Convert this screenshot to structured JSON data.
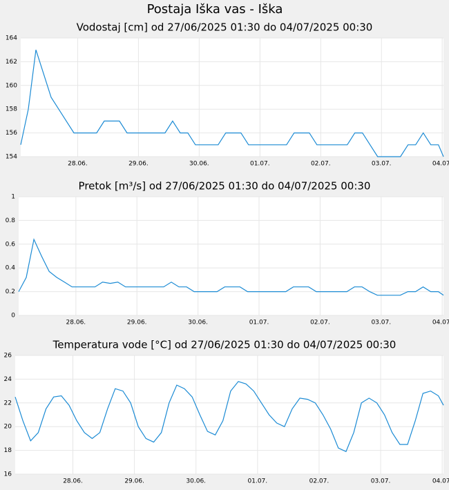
{
  "title": "Postaja Iška vas - Iška",
  "chart_data": [
    {
      "type": "line",
      "title": "Vodostaj [cm] od 27/06/2025 01:30 do 04/07/2025 00:30",
      "x": [
        "27/06/2025 01:30",
        "27/06/2025 04:30",
        "27/06/2025 07:30",
        "27/06/2025 10:30",
        "27/06/2025 13:30",
        "27/06/2025 16:30",
        "27/06/2025 19:30",
        "27/06/2025 22:30",
        "28/06/2025 01:30",
        "28/06/2025 04:30",
        "28/06/2025 07:30",
        "28/06/2025 10:30",
        "28/06/2025 13:30",
        "28/06/2025 16:30",
        "28/06/2025 19:30",
        "28/06/2025 22:30",
        "29/06/2025 01:30",
        "29/06/2025 04:30",
        "29/06/2025 07:30",
        "29/06/2025 10:30",
        "29/06/2025 13:30",
        "29/06/2025 16:30",
        "29/06/2025 19:30",
        "29/06/2025 22:30",
        "30/06/2025 01:30",
        "30/06/2025 04:30",
        "30/06/2025 07:30",
        "30/06/2025 10:30",
        "30/06/2025 13:30",
        "30/06/2025 16:30",
        "30/06/2025 19:30",
        "30/06/2025 22:30",
        "01/07/2025 01:30",
        "01/07/2025 04:30",
        "01/07/2025 07:30",
        "01/07/2025 10:30",
        "01/07/2025 13:30",
        "01/07/2025 16:30",
        "01/07/2025 19:30",
        "01/07/2025 22:30",
        "02/07/2025 01:30",
        "02/07/2025 04:30",
        "02/07/2025 07:30",
        "02/07/2025 10:30",
        "02/07/2025 13:30",
        "02/07/2025 16:30",
        "02/07/2025 19:30",
        "02/07/2025 22:30",
        "03/07/2025 01:30",
        "03/07/2025 04:30",
        "03/07/2025 07:30",
        "03/07/2025 10:30",
        "03/07/2025 13:30",
        "03/07/2025 16:30",
        "03/07/2025 19:30",
        "03/07/2025 22:30",
        "04/07/2025 00:30"
      ],
      "values": [
        155,
        158,
        163,
        161,
        159,
        158,
        157,
        156,
        156,
        156,
        156,
        157,
        157,
        157,
        156,
        156,
        156,
        156,
        156,
        156,
        157,
        156,
        156,
        155,
        155,
        155,
        155,
        156,
        156,
        156,
        155,
        155,
        155,
        155,
        155,
        155,
        156,
        156,
        156,
        155,
        155,
        155,
        155,
        155,
        156,
        156,
        155,
        154,
        154,
        154,
        154,
        155,
        155,
        156,
        155,
        155,
        154
      ],
      "color": "#1a8ad4",
      "xlim": [
        "27/06/2025 01:30",
        "04/07/2025 00:30"
      ],
      "xticks": [
        {
          "value": "28/06/2025 00:00",
          "label": "28.06."
        },
        {
          "value": "29/06/2025 00:00",
          "label": "29.06."
        },
        {
          "value": "30/06/2025 00:00",
          "label": "30.06."
        },
        {
          "value": "01/07/2025 00:00",
          "label": "01.07."
        },
        {
          "value": "02/07/2025 00:00",
          "label": "02.07."
        },
        {
          "value": "03/07/2025 00:00",
          "label": "03.07."
        },
        {
          "value": "04/07/2025 00:00",
          "label": "04.07."
        }
      ],
      "ylim": [
        154,
        164
      ],
      "yticks": [
        154,
        156,
        158,
        160,
        162,
        164
      ],
      "grid": true
    },
    {
      "type": "line",
      "title": "Pretok [m³/s] od 27/06/2025 01:30 do 04/07/2025 00:30",
      "x": [
        "27/06/2025 01:30",
        "27/06/2025 04:30",
        "27/06/2025 07:30",
        "27/06/2025 10:30",
        "27/06/2025 13:30",
        "27/06/2025 16:30",
        "27/06/2025 19:30",
        "27/06/2025 22:30",
        "28/06/2025 01:30",
        "28/06/2025 04:30",
        "28/06/2025 07:30",
        "28/06/2025 10:30",
        "28/06/2025 13:30",
        "28/06/2025 16:30",
        "28/06/2025 19:30",
        "28/06/2025 22:30",
        "29/06/2025 01:30",
        "29/06/2025 04:30",
        "29/06/2025 07:30",
        "29/06/2025 10:30",
        "29/06/2025 13:30",
        "29/06/2025 16:30",
        "29/06/2025 19:30",
        "29/06/2025 22:30",
        "30/06/2025 01:30",
        "30/06/2025 04:30",
        "30/06/2025 07:30",
        "30/06/2025 10:30",
        "30/06/2025 13:30",
        "30/06/2025 16:30",
        "30/06/2025 19:30",
        "30/06/2025 22:30",
        "01/07/2025 01:30",
        "01/07/2025 04:30",
        "01/07/2025 07:30",
        "01/07/2025 10:30",
        "01/07/2025 13:30",
        "01/07/2025 16:30",
        "01/07/2025 19:30",
        "01/07/2025 22:30",
        "02/07/2025 01:30",
        "02/07/2025 04:30",
        "02/07/2025 07:30",
        "02/07/2025 10:30",
        "02/07/2025 13:30",
        "02/07/2025 16:30",
        "02/07/2025 19:30",
        "02/07/2025 22:30",
        "03/07/2025 01:30",
        "03/07/2025 04:30",
        "03/07/2025 07:30",
        "03/07/2025 10:30",
        "03/07/2025 13:30",
        "03/07/2025 16:30",
        "03/07/2025 19:30",
        "03/07/2025 22:30",
        "04/07/2025 00:30"
      ],
      "values": [
        0.2,
        0.32,
        0.64,
        0.5,
        0.37,
        0.32,
        0.28,
        0.24,
        0.24,
        0.24,
        0.24,
        0.28,
        0.27,
        0.28,
        0.24,
        0.24,
        0.24,
        0.24,
        0.24,
        0.24,
        0.28,
        0.24,
        0.24,
        0.2,
        0.2,
        0.2,
        0.2,
        0.24,
        0.24,
        0.24,
        0.2,
        0.2,
        0.2,
        0.2,
        0.2,
        0.2,
        0.24,
        0.24,
        0.24,
        0.2,
        0.2,
        0.2,
        0.2,
        0.2,
        0.24,
        0.24,
        0.2,
        0.17,
        0.17,
        0.17,
        0.17,
        0.2,
        0.2,
        0.24,
        0.2,
        0.2,
        0.17
      ],
      "color": "#1a8ad4",
      "xlim": [
        "27/06/2025 01:30",
        "04/07/2025 00:30"
      ],
      "xticks": [
        {
          "value": "28/06/2025 00:00",
          "label": "28.06."
        },
        {
          "value": "29/06/2025 00:00",
          "label": "29.06."
        },
        {
          "value": "30/06/2025 00:00",
          "label": "30.06."
        },
        {
          "value": "01/07/2025 00:00",
          "label": "01.07."
        },
        {
          "value": "02/07/2025 00:00",
          "label": "02.07."
        },
        {
          "value": "03/07/2025 00:00",
          "label": "03.07."
        },
        {
          "value": "04/07/2025 00:00",
          "label": "04.07."
        }
      ],
      "ylim": [
        0,
        1
      ],
      "yticks": [
        0,
        0.2,
        0.4,
        0.6,
        0.8,
        1
      ],
      "grid": true
    },
    {
      "type": "line",
      "title": "Temperatura vode [°C] od 27/06/2025 01:30 do 04/07/2025 00:30",
      "x": [
        "27/06/2025 01:30",
        "27/06/2025 04:30",
        "27/06/2025 07:30",
        "27/06/2025 10:30",
        "27/06/2025 13:30",
        "27/06/2025 16:30",
        "27/06/2025 19:30",
        "27/06/2025 22:30",
        "28/06/2025 01:30",
        "28/06/2025 04:30",
        "28/06/2025 07:30",
        "28/06/2025 10:30",
        "28/06/2025 13:30",
        "28/06/2025 16:30",
        "28/06/2025 19:30",
        "28/06/2025 22:30",
        "29/06/2025 01:30",
        "29/06/2025 04:30",
        "29/06/2025 07:30",
        "29/06/2025 10:30",
        "29/06/2025 13:30",
        "29/06/2025 16:30",
        "29/06/2025 19:30",
        "29/06/2025 22:30",
        "30/06/2025 01:30",
        "30/06/2025 04:30",
        "30/06/2025 07:30",
        "30/06/2025 10:30",
        "30/06/2025 13:30",
        "30/06/2025 16:30",
        "30/06/2025 19:30",
        "30/06/2025 22:30",
        "01/07/2025 01:30",
        "01/07/2025 04:30",
        "01/07/2025 07:30",
        "01/07/2025 10:30",
        "01/07/2025 13:30",
        "01/07/2025 16:30",
        "01/07/2025 19:30",
        "01/07/2025 22:30",
        "02/07/2025 01:30",
        "02/07/2025 04:30",
        "02/07/2025 07:30",
        "02/07/2025 10:30",
        "02/07/2025 13:30",
        "02/07/2025 16:30",
        "02/07/2025 19:30",
        "02/07/2025 22:30",
        "03/07/2025 01:30",
        "03/07/2025 04:30",
        "03/07/2025 07:30",
        "03/07/2025 10:30",
        "03/07/2025 13:30",
        "03/07/2025 16:30",
        "03/07/2025 19:30",
        "03/07/2025 22:30",
        "04/07/2025 00:30"
      ],
      "values": [
        22.5,
        20.5,
        18.8,
        19.5,
        21.5,
        22.5,
        22.6,
        21.8,
        20.5,
        19.5,
        19.0,
        19.5,
        21.5,
        23.2,
        23.0,
        22.0,
        20.0,
        19.0,
        18.7,
        19.5,
        22.0,
        23.5,
        23.2,
        22.5,
        21.0,
        19.6,
        19.3,
        20.5,
        23.0,
        23.8,
        23.6,
        23.0,
        22.0,
        21.0,
        20.3,
        20.0,
        21.5,
        22.4,
        22.3,
        22.0,
        21.0,
        19.8,
        18.2,
        17.9,
        19.5,
        22.0,
        22.4,
        22.0,
        21.0,
        19.5,
        18.5,
        18.5,
        20.5,
        22.8,
        23.0,
        22.6,
        21.8
      ],
      "color": "#1a8ad4",
      "xlim": [
        "27/06/2025 01:30",
        "04/07/2025 00:30"
      ],
      "xticks": [
        {
          "value": "28/06/2025 00:00",
          "label": "28.06."
        },
        {
          "value": "29/06/2025 00:00",
          "label": "29.06."
        },
        {
          "value": "30/06/2025 00:00",
          "label": "30.06."
        },
        {
          "value": "01/07/2025 00:00",
          "label": "01.07."
        },
        {
          "value": "02/07/2025 00:00",
          "label": "02.07."
        },
        {
          "value": "03/07/2025 00:00",
          "label": "03.07."
        },
        {
          "value": "04/07/2025 00:00",
          "label": "04.07."
        }
      ],
      "ylim": [
        16,
        26
      ],
      "yticks": [
        16,
        18,
        20,
        22,
        24,
        26
      ],
      "grid": true
    }
  ]
}
